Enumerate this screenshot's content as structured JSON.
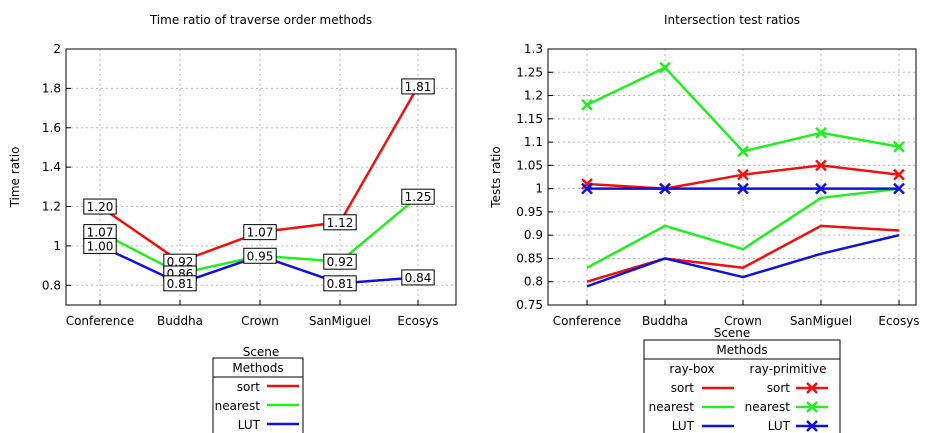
{
  "chart_data": [
    {
      "type": "line",
      "title": "Time ratio of traverse order methods",
      "xlabel": "Scene",
      "ylabel": "Time ratio",
      "categories": [
        "Conference",
        "Buddha",
        "Crown",
        "SanMiguel",
        "Ecosys"
      ],
      "ylim": [
        0.7,
        2.0
      ],
      "yticks": [
        "0.8",
        "1",
        "1.2",
        "1.4",
        "1.6",
        "1.8",
        "2"
      ],
      "grid": true,
      "legend": {
        "title": "Methods",
        "placement": "bottom-center"
      },
      "series": [
        {
          "name": "sort",
          "color": "#ee1111",
          "values": [
            1.2,
            0.92,
            1.07,
            1.12,
            1.81
          ],
          "labels": [
            "1.20",
            "0.92",
            "1.07",
            "1.12",
            "1.81"
          ]
        },
        {
          "name": "nearest",
          "color": "#22ee22",
          "values": [
            1.07,
            0.86,
            0.95,
            0.92,
            1.25
          ],
          "labels": [
            "1.07",
            "0.86",
            "",
            "0.92",
            "1.25"
          ]
        },
        {
          "name": "LUT",
          "color": "#1111dd",
          "values": [
            1.0,
            0.81,
            0.95,
            0.81,
            0.84
          ],
          "labels": [
            "1.00",
            "0.81",
            "0.95",
            "0.81",
            "0.84"
          ]
        }
      ]
    },
    {
      "type": "line",
      "title": "Intersection test ratios",
      "xlabel": "Scene",
      "ylabel": "Tests ratio",
      "categories": [
        "Conference",
        "Buddha",
        "Crown",
        "SanMiguel",
        "Ecosys"
      ],
      "ylim": [
        0.75,
        1.3
      ],
      "yticks": [
        "0.75",
        "0.8",
        "0.85",
        "0.9",
        "0.95",
        "1",
        "1.05",
        "1.1",
        "1.15",
        "1.2",
        "1.25",
        "1.3"
      ],
      "grid": true,
      "legend": {
        "title": "Methods",
        "groups": [
          "ray-box",
          "ray-primitive"
        ],
        "placement": "bottom-center"
      },
      "series": [
        {
          "name": "sort",
          "group": "ray-box",
          "color": "#ee1111",
          "marker": "none",
          "values": [
            0.8,
            0.85,
            0.83,
            0.92,
            0.91
          ]
        },
        {
          "name": "nearest",
          "group": "ray-box",
          "color": "#22ee22",
          "marker": "none",
          "values": [
            0.83,
            0.92,
            0.87,
            0.98,
            1.0
          ]
        },
        {
          "name": "LUT",
          "group": "ray-box",
          "color": "#1111dd",
          "marker": "none",
          "values": [
            0.79,
            0.85,
            0.81,
            0.86,
            0.9
          ]
        },
        {
          "name": "sort",
          "group": "ray-primitive",
          "color": "#ee1111",
          "marker": "x",
          "values": [
            1.01,
            1.0,
            1.03,
            1.05,
            1.03
          ]
        },
        {
          "name": "nearest",
          "group": "ray-primitive",
          "color": "#22ee22",
          "marker": "x",
          "values": [
            1.18,
            1.26,
            1.08,
            1.12,
            1.09
          ]
        },
        {
          "name": "LUT",
          "group": "ray-primitive",
          "color": "#1111dd",
          "marker": "x",
          "values": [
            1.0,
            1.0,
            1.0,
            1.0,
            1.0
          ]
        }
      ]
    }
  ]
}
